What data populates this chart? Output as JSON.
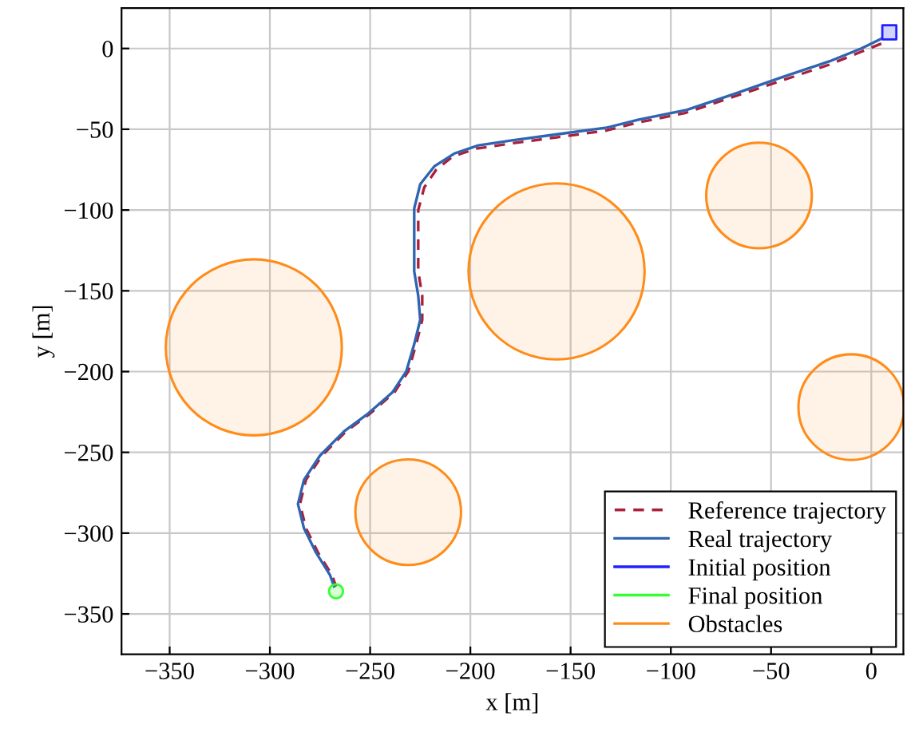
{
  "chart_data": {
    "type": "line",
    "xlabel": "x [m]",
    "ylabel": "y [m]",
    "xlim": [
      -374,
      16
    ],
    "ylim": [
      -375,
      25
    ],
    "xticks": [
      -350,
      -300,
      -250,
      -200,
      -150,
      -100,
      -50,
      0
    ],
    "yticks": [
      -350,
      -300,
      -250,
      -200,
      -150,
      -100,
      -50,
      0
    ],
    "grid": true,
    "legend": "bottom right",
    "series": [
      {
        "name": "Reference trajectory",
        "line_style": "dashed",
        "color": "#a8203c",
        "x": [
          5,
          -5,
          -21,
          -45,
          -69,
          -93,
          -117,
          -133,
          -157,
          -181,
          -197,
          -209,
          -217,
          -223,
          -226,
          -226,
          -226,
          -224,
          -224,
          -227,
          -231,
          -238,
          -250,
          -262,
          -274,
          -282,
          -285,
          -282,
          -276,
          -269,
          -267
        ],
        "values": [
          3,
          -2,
          -10,
          -20,
          -30,
          -40,
          -46,
          -51,
          -55,
          -59,
          -62,
          -67,
          -75,
          -86,
          -100,
          -119,
          -138,
          -153,
          -168,
          -183,
          -200,
          -213,
          -226,
          -237,
          -252,
          -267,
          -282,
          -297,
          -312,
          -326,
          -333
        ]
      },
      {
        "name": "Real trajectory",
        "line_style": "solid",
        "color": "#2e64b0",
        "x": [
          5,
          -5,
          -21,
          -45,
          -68,
          -92,
          -116,
          -132,
          -156,
          -180,
          -196,
          -208,
          -218,
          -225,
          -228,
          -228,
          -228,
          -226,
          -225,
          -228,
          -232,
          -239,
          -251,
          -263,
          -275,
          -283,
          -286,
          -283,
          -277,
          -270,
          -268
        ],
        "values": [
          6,
          0,
          -8,
          -18,
          -28,
          -38,
          -44,
          -49,
          -53,
          -57,
          -60,
          -65,
          -73,
          -84,
          -99,
          -119,
          -138,
          -153,
          -168,
          -183,
          -200,
          -213,
          -226,
          -237,
          -252,
          -267,
          -282,
          -297,
          -312,
          -326,
          -333
        ]
      },
      {
        "name": "Initial position",
        "type": "scatter",
        "marker": "square",
        "color": "#2020ff",
        "x": [
          9
        ],
        "values": [
          10
        ]
      },
      {
        "name": "Final position",
        "type": "scatter",
        "marker": "circle",
        "color": "#33ff33",
        "x": [
          -267
        ],
        "values": [
          -336
        ]
      },
      {
        "name": "Obstacles",
        "type": "bubble",
        "color": "#ff8c1a",
        "x": [
          -308,
          -157,
          -56,
          -231,
          -10
        ],
        "values": [
          -185,
          -138,
          -91,
          -287,
          -222
        ],
        "sizes": [
          1,
          1,
          0.36,
          0.36,
          0.36
        ]
      }
    ]
  }
}
